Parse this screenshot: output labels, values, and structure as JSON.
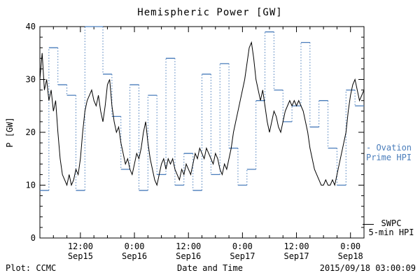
{
  "footer": {
    "left": "Plot: CCMC",
    "right": "2015/09/18 03:00:09"
  },
  "legends": {
    "ovation": {
      "line1": "- Ovation",
      "line2": "Prime HPI"
    },
    "swpc": {
      "line1": "SWPC",
      "line2": "5-min HPI"
    }
  },
  "chart_data": {
    "type": "line",
    "title": "Hemispheric Power [GW]",
    "xlabel": "Date and Time",
    "ylabel": "P [GW]",
    "ylim": [
      0,
      40
    ],
    "y_ticks": [
      0,
      10,
      20,
      30,
      40
    ],
    "y_minor_step": 2,
    "x_hours_range": [
      0,
      72
    ],
    "x_minor_step_hours": 3,
    "grid": false,
    "legend_position": "right-outside",
    "x_ticks": [
      {
        "hour": 9,
        "time": "12:00",
        "date": "Sep15"
      },
      {
        "hour": 21,
        "time": "0:00",
        "date": "Sep16"
      },
      {
        "hour": 33,
        "time": "12:00",
        "date": "Sep16"
      },
      {
        "hour": 45,
        "time": "0:00",
        "date": "Sep17"
      },
      {
        "hour": 57,
        "time": "12:00",
        "date": "Sep17"
      },
      {
        "hour": 69,
        "time": "0:00",
        "date": "Sep18"
      }
    ],
    "series": [
      {
        "name": "SWPC 5-min HPI",
        "color": "#000000",
        "style": "solid-line",
        "x0_hours": 0,
        "dx_hours": 0.5,
        "values": [
          30,
          35,
          28,
          30,
          26,
          28,
          24,
          26,
          20,
          15,
          12,
          11,
          10,
          12,
          10,
          11,
          13,
          12,
          15,
          20,
          24,
          26,
          27,
          28,
          26,
          25,
          27,
          24,
          22,
          25,
          29,
          30,
          25,
          22,
          20,
          21,
          18,
          16,
          14,
          15,
          13,
          12,
          14,
          16,
          15,
          17,
          20,
          22,
          18,
          15,
          13,
          11,
          10,
          12,
          14,
          15,
          13,
          15,
          14,
          15,
          13,
          12,
          11,
          13,
          12,
          14,
          13,
          12,
          14,
          16,
          15,
          17,
          16,
          15,
          17,
          16,
          15,
          14,
          16,
          15,
          13,
          12,
          14,
          13,
          15,
          17,
          20,
          22,
          24,
          26,
          28,
          30,
          33,
          36,
          37,
          34,
          30,
          28,
          26,
          28,
          25,
          22,
          20,
          22,
          24,
          23,
          21,
          20,
          22,
          24,
          25,
          26,
          25,
          26,
          25,
          26,
          25,
          24,
          22,
          20,
          17,
          15,
          13,
          12,
          11,
          10,
          10,
          11,
          10,
          10,
          11,
          10,
          12,
          14,
          16,
          18,
          20,
          24,
          27,
          29,
          30,
          28,
          26,
          27,
          28
        ]
      },
      {
        "name": "Ovation Prime HPI",
        "color": "#4a7dbb",
        "style": "step-dashed",
        "x0_hours": 0,
        "step_hours": 2,
        "values": [
          9,
          36,
          29,
          27,
          9,
          40,
          40,
          31,
          23,
          13,
          29,
          9,
          27,
          12,
          34,
          10,
          16,
          9,
          31,
          12,
          33,
          17,
          10,
          13,
          26,
          39,
          28,
          22,
          25,
          37,
          21,
          26,
          17,
          10,
          28,
          25
        ]
      }
    ]
  }
}
